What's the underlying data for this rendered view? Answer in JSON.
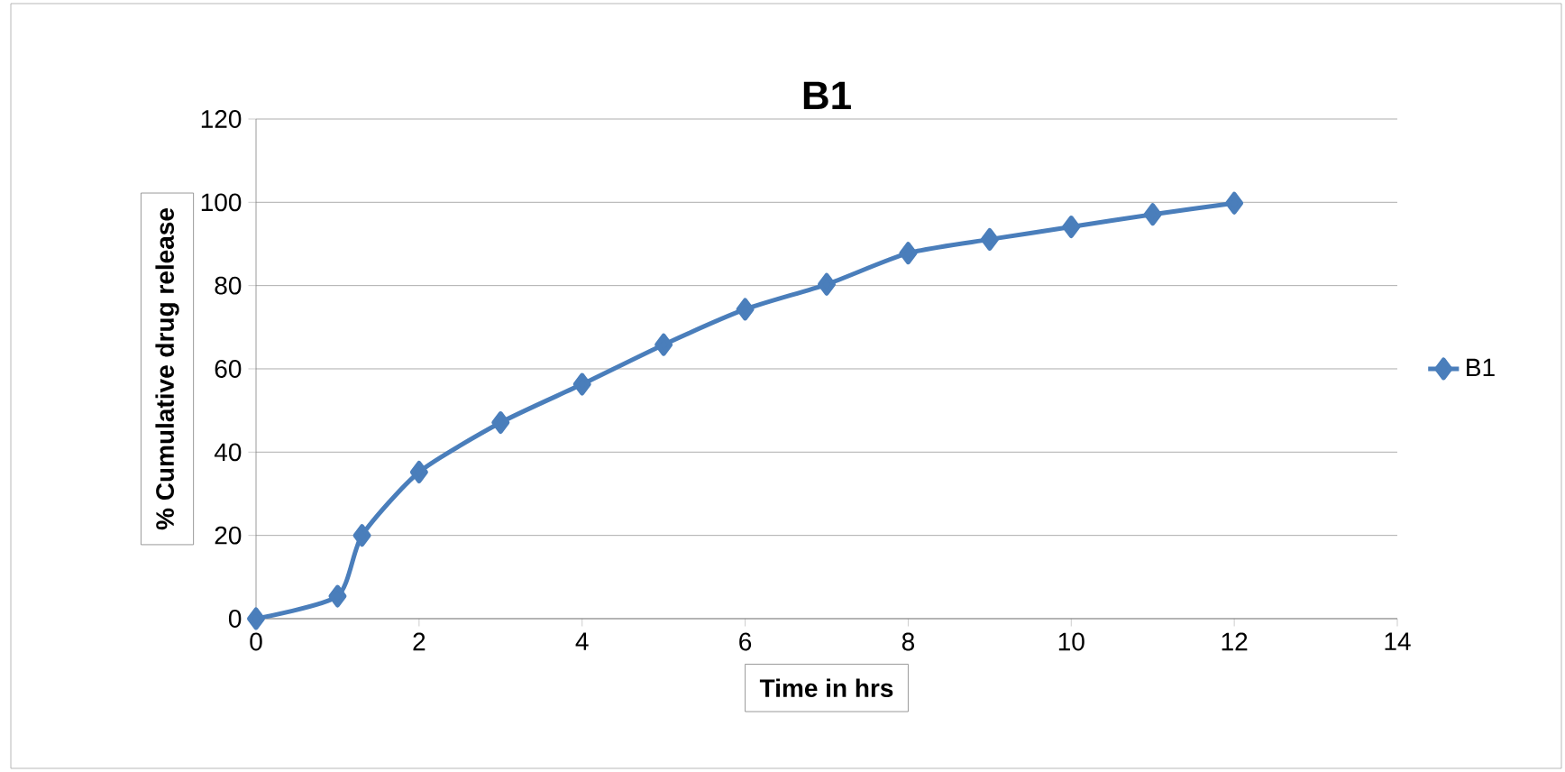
{
  "chart_data": {
    "type": "line",
    "title": "B1",
    "xlabel": "Time in hrs",
    "ylabel": "% Cumulative drug release",
    "x": [
      0,
      1,
      1.3,
      2,
      3,
      4,
      5,
      6,
      7,
      8,
      9,
      10,
      11,
      12
    ],
    "series": [
      {
        "name": "B1",
        "color": "#4a7ebb",
        "values": [
          0,
          5.4,
          20,
          35.2,
          47.1,
          56.3,
          65.8,
          74.3,
          80.3,
          87.8,
          91.1,
          94.1,
          97.1,
          99.8
        ]
      }
    ],
    "xlim": [
      0,
      14
    ],
    "xticks": [
      0,
      2,
      4,
      6,
      8,
      10,
      12,
      14
    ],
    "ylim": [
      0,
      120
    ],
    "yticks": [
      0,
      20,
      40,
      60,
      80,
      100,
      120
    ],
    "grid": "y",
    "legend": "right",
    "marker": "diamond",
    "line_style": "solid"
  }
}
